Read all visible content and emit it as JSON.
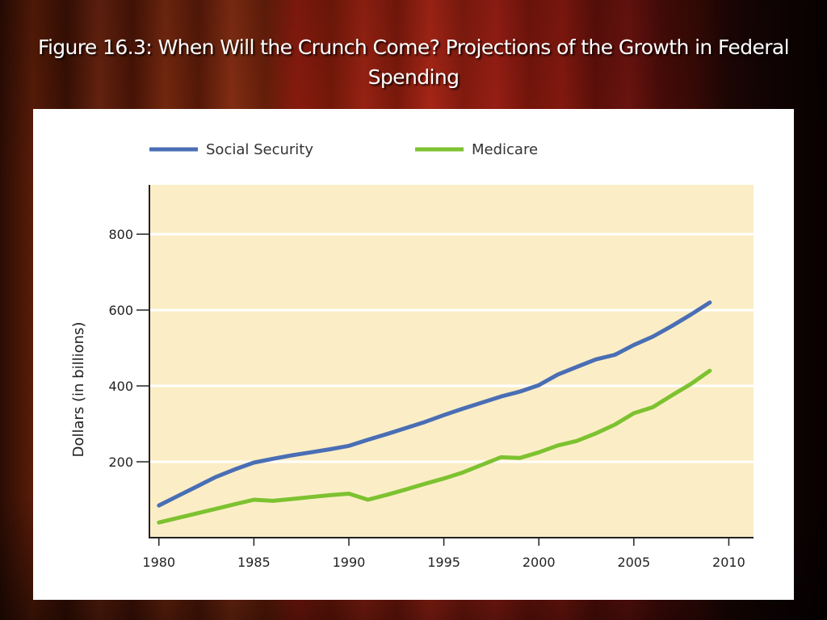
{
  "slide": {
    "title": "Figure 16.3: When Will the Crunch Come? Projections of the Growth in Federal Spending"
  },
  "chart_data": {
    "type": "line",
    "title": "",
    "xlabel": "",
    "ylabel": "Dollars (in billions)",
    "xlim": [
      1979.5,
      2011.3
    ],
    "ylim": [
      0,
      930
    ],
    "x_ticks": [
      1980,
      1985,
      1990,
      1995,
      2000,
      2005,
      2010
    ],
    "y_ticks": [
      200,
      400,
      600,
      800
    ],
    "grid": "horizontal",
    "legend": "top",
    "plot_background": "#fbeec6",
    "series": [
      {
        "name": "Social Security",
        "color": "#4a6eb5",
        "x": [
          1980,
          1981,
          1982,
          1983,
          1984,
          1985,
          1986,
          1987,
          1988,
          1989,
          1990,
          1991,
          1992,
          1993,
          1994,
          1995,
          1996,
          1997,
          1998,
          1999,
          2000,
          2001,
          2002,
          2003,
          2004,
          2005,
          2006,
          2007,
          2008,
          2009
        ],
        "values": [
          85,
          110,
          135,
          160,
          180,
          198,
          208,
          217,
          225,
          233,
          242,
          258,
          273,
          289,
          305,
          323,
          340,
          356,
          372,
          385,
          402,
          430,
          450,
          470,
          482,
          508,
          530,
          558,
          588,
          620
        ]
      },
      {
        "name": "Medicare",
        "color": "#7dc230",
        "x": [
          1980,
          1981,
          1982,
          1983,
          1984,
          1985,
          1986,
          1987,
          1988,
          1989,
          1990,
          1991,
          1992,
          1993,
          1994,
          1995,
          1996,
          1997,
          1998,
          1999,
          2000,
          2001,
          2002,
          2003,
          2004,
          2005,
          2006,
          2007,
          2008,
          2009
        ],
        "values": [
          40,
          52,
          64,
          76,
          88,
          100,
          97,
          102,
          107,
          112,
          116,
          100,
          113,
          127,
          142,
          156,
          172,
          192,
          212,
          210,
          225,
          243,
          255,
          275,
          298,
          328,
          344,
          375,
          405,
          440
        ]
      }
    ]
  }
}
